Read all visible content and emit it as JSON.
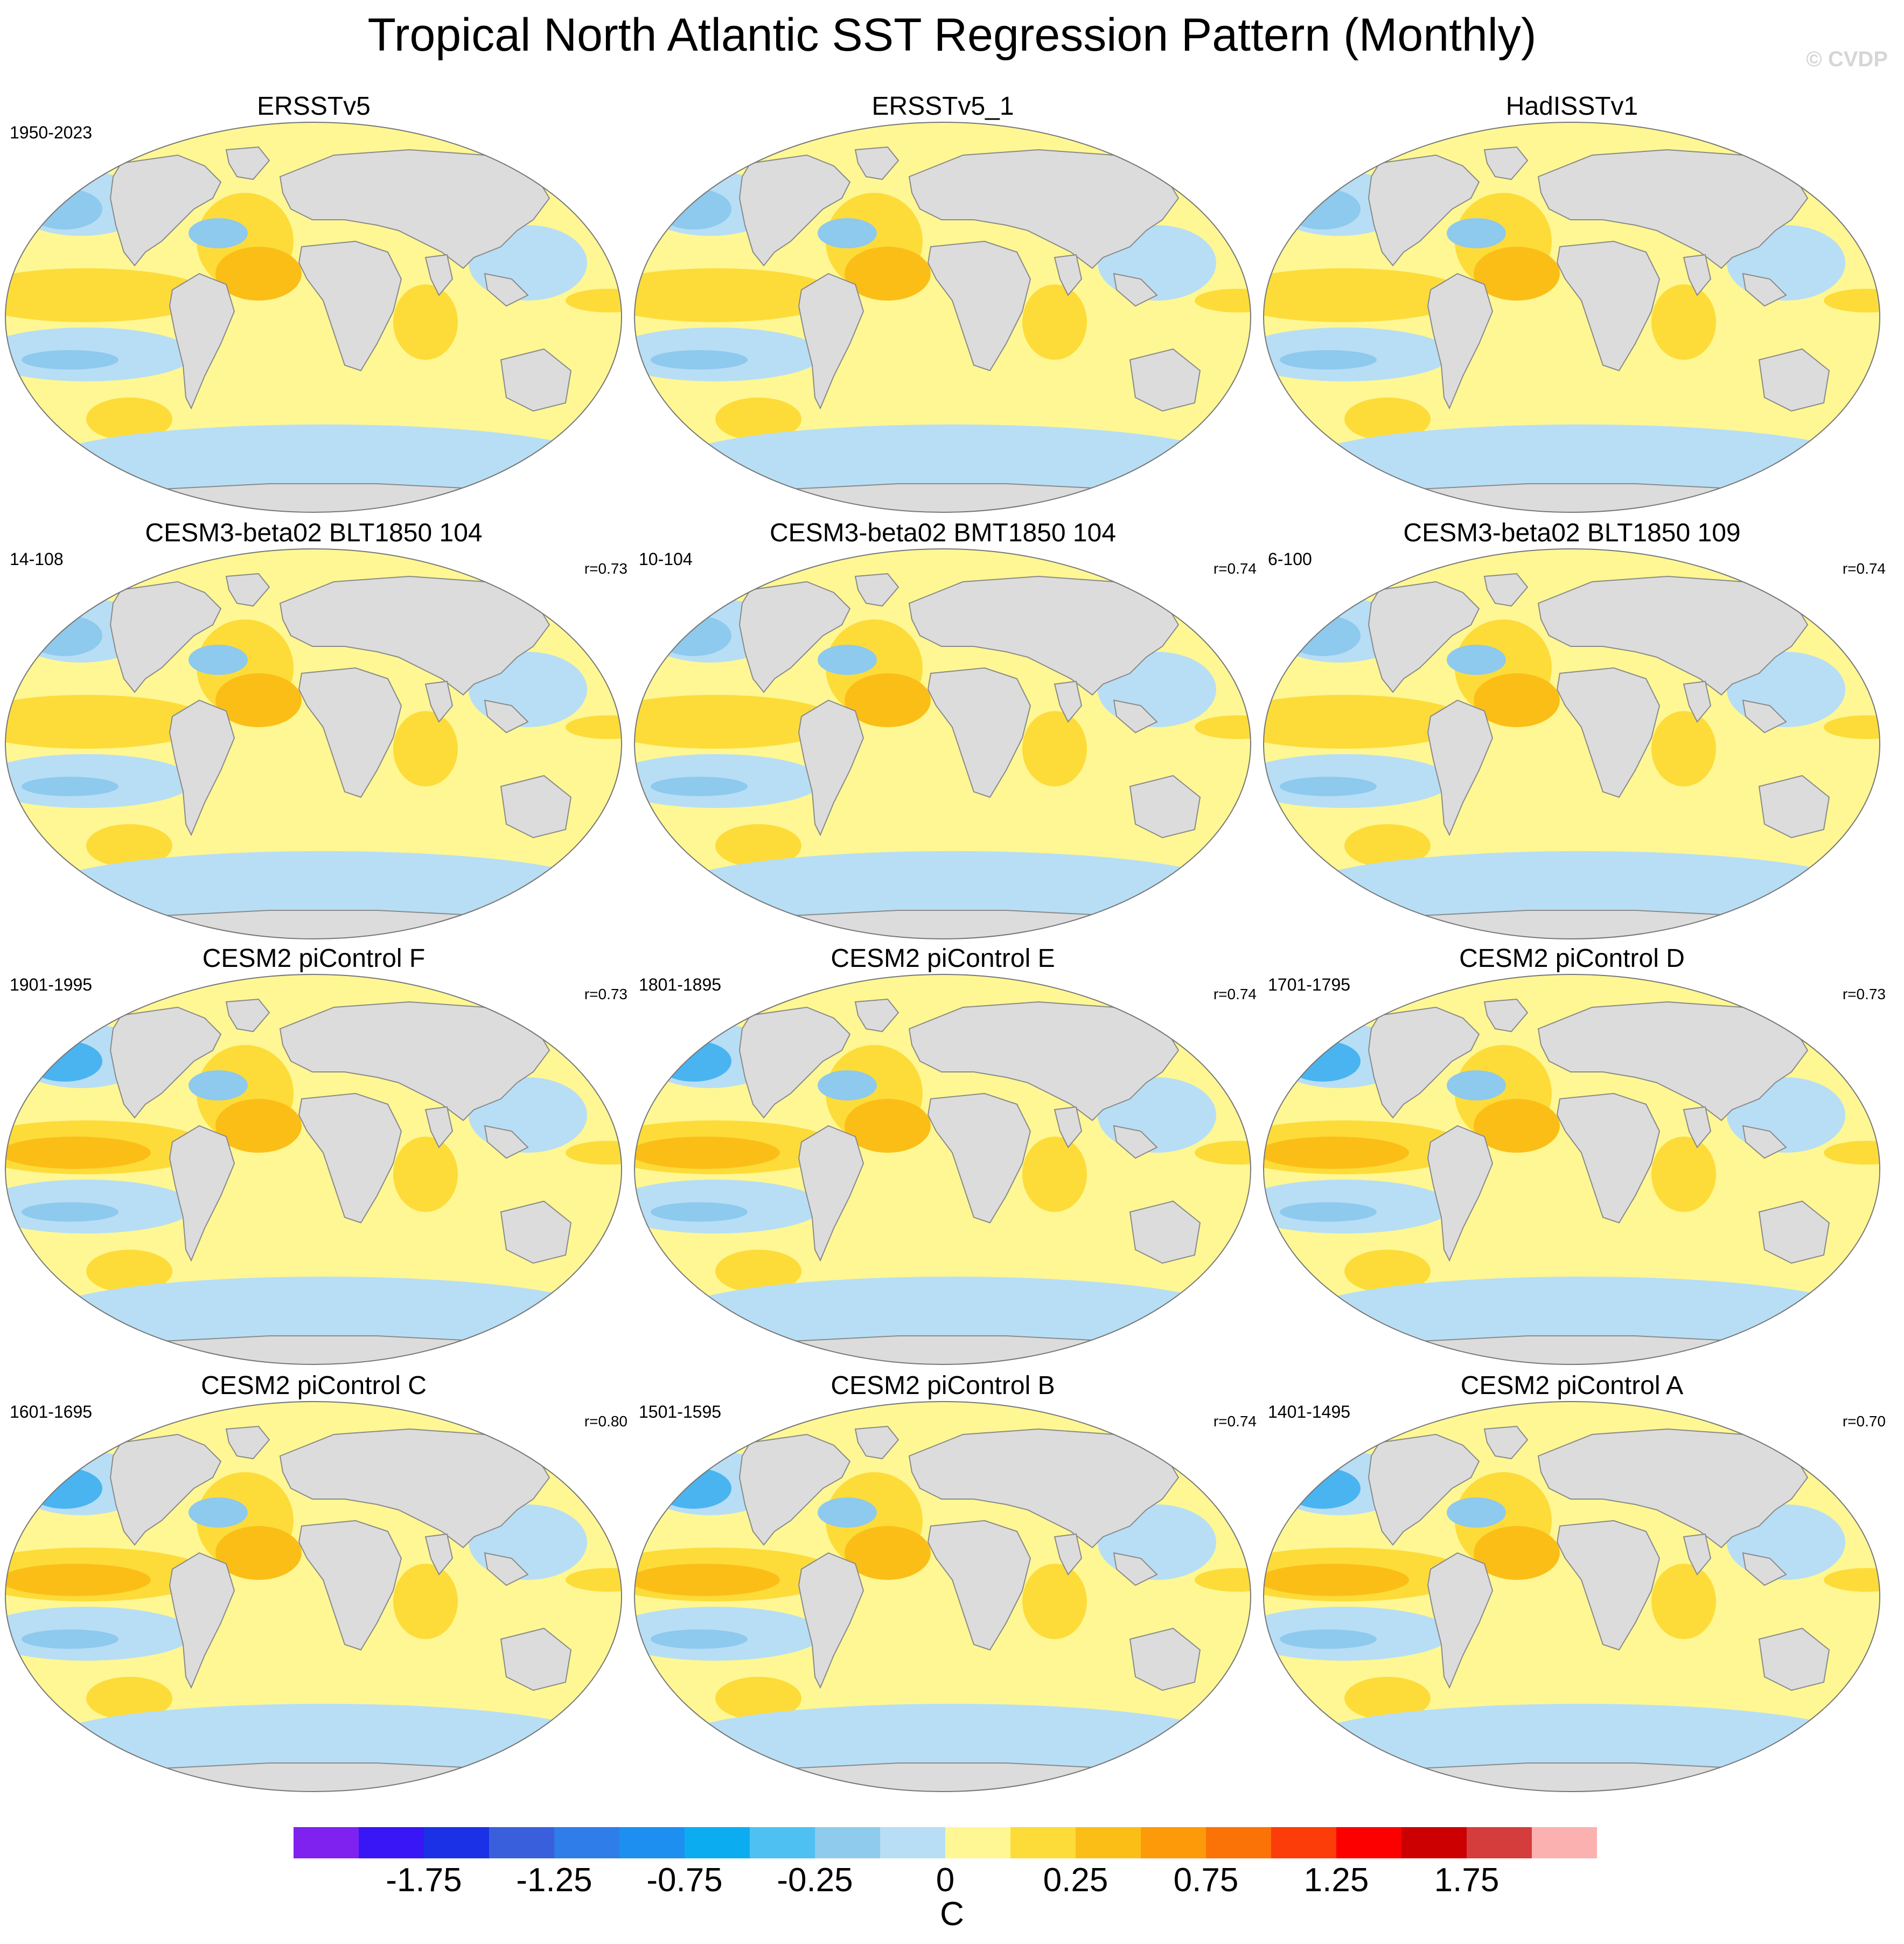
{
  "title": "Tropical North Atlantic SST Regression Pattern (Monthly)",
  "credit": "© CVDP",
  "colors": {
    "land": "#dcdcdc",
    "coast": "#8a8a8a",
    "warm1": "#fef794",
    "warm2": "#fddc3a",
    "warm3": "#fbbe17",
    "cool1": "#b7def5",
    "cool2": "#8ec9ee",
    "cool3": "#4ab4f0"
  },
  "panels": [
    {
      "title": "ERSSTv5",
      "period": "1950-2023",
      "corr": ""
    },
    {
      "title": "ERSSTv5_1",
      "period": "",
      "corr": ""
    },
    {
      "title": "HadISSTv1",
      "period": "",
      "corr": ""
    },
    {
      "title": "CESM3-beta02 BLT1850 104",
      "period": "14-108",
      "corr": "r=0.73"
    },
    {
      "title": "CESM3-beta02 BMT1850 104",
      "period": "10-104",
      "corr": "r=0.74"
    },
    {
      "title": "CESM3-beta02 BLT1850 109",
      "period": "6-100",
      "corr": "r=0.74"
    },
    {
      "title": "CESM2 piControl F",
      "period": "1901-1995",
      "corr": "r=0.73"
    },
    {
      "title": "CESM2 piControl E",
      "period": "1801-1895",
      "corr": "r=0.74"
    },
    {
      "title": "CESM2 piControl D",
      "period": "1701-1795",
      "corr": "r=0.73"
    },
    {
      "title": "CESM2 piControl C",
      "period": "1601-1695",
      "corr": "r=0.80"
    },
    {
      "title": "CESM2 piControl B",
      "period": "1501-1595",
      "corr": "r=0.74"
    },
    {
      "title": "CESM2 piControl A",
      "period": "1401-1495",
      "corr": "r=0.70"
    }
  ],
  "colorbar": {
    "unit": "C",
    "colors": [
      "#7f22f0",
      "#3816f5",
      "#1b31e6",
      "#3a5fdc",
      "#2f7de8",
      "#1d8ff0",
      "#0cadf0",
      "#4fc0f2",
      "#8ecbec",
      "#b7def5",
      "#fef794",
      "#fddc3a",
      "#fbbe17",
      "#fc9a0a",
      "#fb7206",
      "#fc3c09",
      "#fc0000",
      "#cc0000",
      "#d53c3c",
      "#fcb1b1"
    ],
    "tick_labels": [
      "-1.75",
      "-1.25",
      "-0.75",
      "-0.25",
      "0",
      "0.25",
      "0.75",
      "1.25",
      "1.75"
    ]
  }
}
